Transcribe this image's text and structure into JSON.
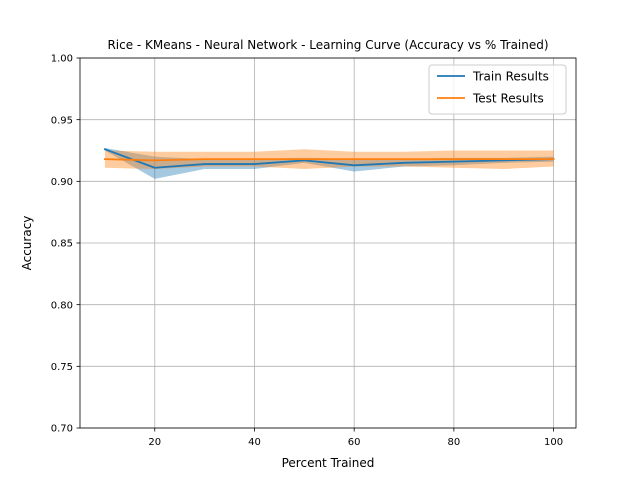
{
  "chart_data": {
    "type": "line",
    "title": "Rice - KMeans - Neural Network - Learning Curve (Accuracy vs % Trained)",
    "xlabel": "Percent Trained",
    "ylabel": "Accuracy",
    "xlim": [
      5,
      104.5
    ],
    "ylim": [
      0.7,
      1.0
    ],
    "xticks": [
      20,
      40,
      60,
      80,
      100
    ],
    "xtick_labels": [
      "20",
      "40",
      "60",
      "80",
      "100"
    ],
    "yticks": [
      0.7,
      0.75,
      0.8,
      0.85,
      0.9,
      0.95,
      1.0
    ],
    "ytick_labels": [
      "0.70",
      "0.75",
      "0.80",
      "0.85",
      "0.90",
      "0.95",
      "1.00"
    ],
    "grid": true,
    "legend_position": "top-right",
    "x": [
      10,
      20,
      30,
      40,
      50,
      60,
      70,
      80,
      90,
      100
    ],
    "series": [
      {
        "name": "Train Results",
        "color": "#1f77b4",
        "values": [
          0.926,
          0.911,
          0.914,
          0.914,
          0.917,
          0.913,
          0.915,
          0.916,
          0.917,
          0.918
        ],
        "lower": [
          0.925,
          0.902,
          0.91,
          0.91,
          0.915,
          0.908,
          0.912,
          0.913,
          0.915,
          0.916
        ],
        "upper": [
          0.927,
          0.92,
          0.918,
          0.918,
          0.919,
          0.918,
          0.918,
          0.919,
          0.919,
          0.92
        ]
      },
      {
        "name": "Test Results",
        "color": "#ff7f0e",
        "values": [
          0.918,
          0.917,
          0.918,
          0.918,
          0.918,
          0.918,
          0.918,
          0.918,
          0.918,
          0.918
        ],
        "lower": [
          0.911,
          0.91,
          0.912,
          0.912,
          0.91,
          0.912,
          0.912,
          0.911,
          0.91,
          0.912
        ],
        "upper": [
          0.925,
          0.924,
          0.924,
          0.924,
          0.926,
          0.924,
          0.924,
          0.925,
          0.925,
          0.925
        ]
      }
    ]
  }
}
